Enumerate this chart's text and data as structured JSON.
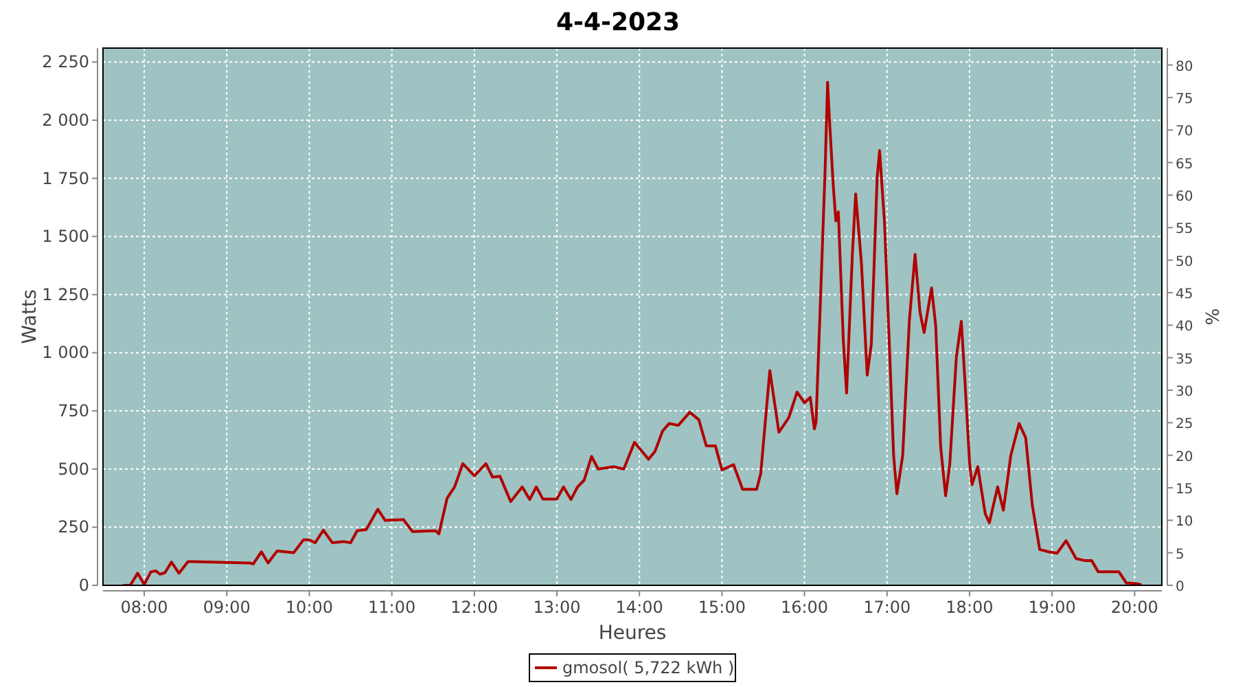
{
  "chart_data": {
    "type": "line",
    "title": "4-4-2023",
    "xlabel": "Heures",
    "ylabel": "Watts",
    "y2label": "%",
    "xlim": [
      7.5,
      20.33
    ],
    "xticks": [
      {
        "value": 8,
        "label": "08:00"
      },
      {
        "value": 9,
        "label": "09:00"
      },
      {
        "value": 10,
        "label": "10:00"
      },
      {
        "value": 11,
        "label": "11:00"
      },
      {
        "value": 12,
        "label": "12:00"
      },
      {
        "value": 13,
        "label": "13:00"
      },
      {
        "value": 14,
        "label": "14:00"
      },
      {
        "value": 15,
        "label": "15:00"
      },
      {
        "value": 16,
        "label": "16:00"
      },
      {
        "value": 17,
        "label": "17:00"
      },
      {
        "value": 18,
        "label": "18:00"
      },
      {
        "value": 19,
        "label": "19:00"
      },
      {
        "value": 20,
        "label": "20:00"
      }
    ],
    "ylim": [
      0,
      2310
    ],
    "yticks": [
      0,
      250,
      500,
      750,
      {
        "value": 1000,
        "label": "1 000"
      },
      {
        "value": 1250,
        "label": "1 250"
      },
      {
        "value": 1500,
        "label": "1 500"
      },
      {
        "value": 1750,
        "label": "1 750"
      },
      {
        "value": 2000,
        "label": "2 000"
      },
      {
        "value": 2250,
        "label": "2 250"
      }
    ],
    "y2lim": [
      0,
      82.6
    ],
    "y2ticks": [
      0,
      5,
      10,
      15,
      20,
      25,
      30,
      35,
      40,
      45,
      50,
      55,
      60,
      65,
      70,
      75,
      80
    ],
    "grid": true,
    "legend": "bottom",
    "marker": "none",
    "line_style": "solid",
    "series": [
      {
        "name": "gmosol( 5,722 kWh )",
        "color": "#b00000",
        "x": [
          7.75,
          7.83,
          7.92,
          8.0,
          8.08,
          8.14,
          8.19,
          8.25,
          8.33,
          8.42,
          8.53,
          8.58,
          9.28,
          9.32,
          9.42,
          9.5,
          9.61,
          9.81,
          9.93,
          10.0,
          10.07,
          10.17,
          10.28,
          10.42,
          10.5,
          10.58,
          10.69,
          10.83,
          10.92,
          11.14,
          11.25,
          11.53,
          11.57,
          11.67,
          11.76,
          11.86,
          12.0,
          12.14,
          12.22,
          12.31,
          12.44,
          12.58,
          12.67,
          12.75,
          12.83,
          13.0,
          13.08,
          13.17,
          13.25,
          13.33,
          13.42,
          13.5,
          13.69,
          13.81,
          13.94,
          14.11,
          14.19,
          14.28,
          14.36,
          14.47,
          14.61,
          14.72,
          14.81,
          14.92,
          15.0,
          15.14,
          15.25,
          15.42,
          15.47,
          15.58,
          15.69,
          15.81,
          15.91,
          16.0,
          16.07,
          16.12,
          16.14,
          16.19,
          16.25,
          16.28,
          16.3,
          16.35,
          16.38,
          16.41,
          16.47,
          16.51,
          16.58,
          16.62,
          16.69,
          16.76,
          16.81,
          16.88,
          16.91,
          16.97,
          17.03,
          17.08,
          17.12,
          17.19,
          17.27,
          17.34,
          17.4,
          17.45,
          17.54,
          17.59,
          17.65,
          17.71,
          17.76,
          17.84,
          17.9,
          17.94,
          18.0,
          18.03,
          18.1,
          18.19,
          18.24,
          18.34,
          18.41,
          18.5,
          18.6,
          18.68,
          18.76,
          18.85,
          18.96,
          19.06,
          19.17,
          19.29,
          19.4,
          19.48,
          19.56,
          19.67,
          19.81,
          19.9,
          20.01,
          20.07
        ],
        "values": [
          0,
          0,
          52,
          4,
          58,
          62,
          48,
          54,
          100,
          52,
          102,
          102,
          96,
          92,
          144,
          96,
          148,
          140,
          196,
          196,
          183,
          237,
          183,
          188,
          183,
          235,
          240,
          327,
          279,
          283,
          231,
          235,
          221,
          375,
          423,
          523,
          471,
          523,
          465,
          469,
          360,
          423,
          369,
          423,
          371,
          371,
          423,
          369,
          423,
          452,
          554,
          500,
          510,
          500,
          615,
          542,
          577,
          663,
          696,
          688,
          744,
          712,
          600,
          600,
          496,
          519,
          413,
          413,
          481,
          923,
          658,
          721,
          831,
          785,
          808,
          673,
          702,
          1192,
          1788,
          2163,
          2019,
          1712,
          1567,
          1606,
          1058,
          827,
          1423,
          1683,
          1385,
          904,
          1038,
          1750,
          1869,
          1558,
          1019,
          558,
          394,
          558,
          1135,
          1423,
          1173,
          1087,
          1279,
          1115,
          596,
          385,
          519,
          981,
          1135,
          904,
          529,
          433,
          510,
          308,
          269,
          423,
          323,
          558,
          696,
          635,
          346,
          154,
          144,
          138,
          192,
          115,
          106,
          106,
          58,
          58,
          58,
          10,
          8,
          4
        ]
      }
    ]
  }
}
